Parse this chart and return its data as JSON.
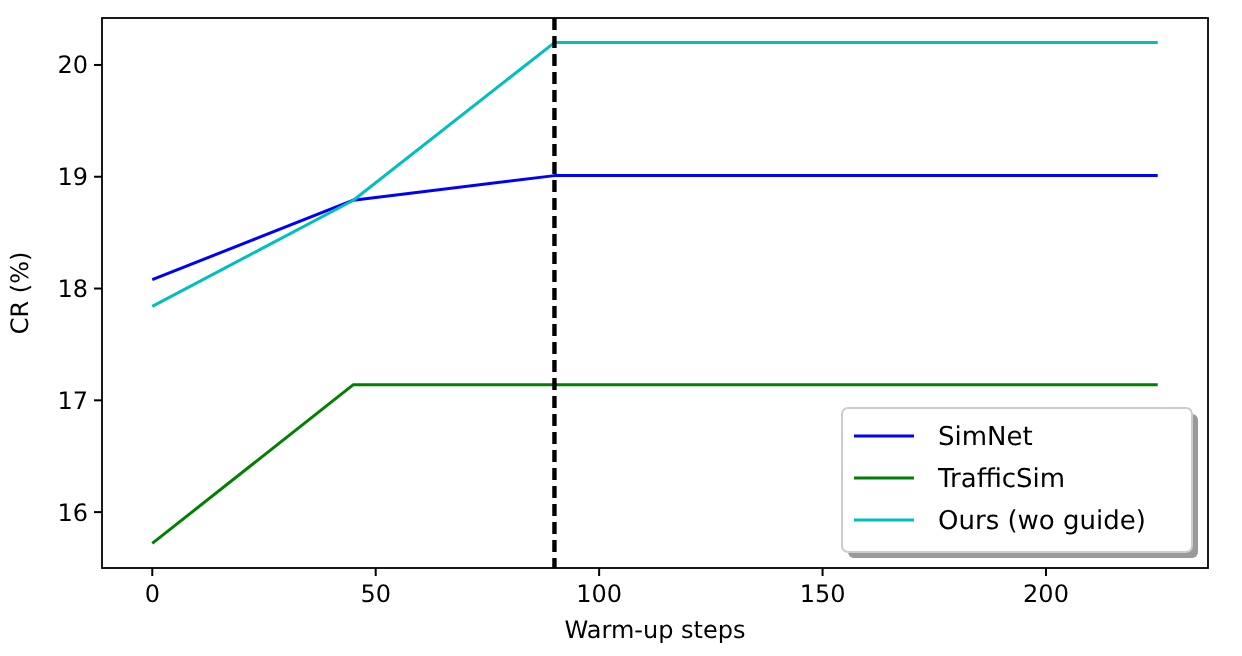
{
  "chart_data": {
    "type": "line",
    "xlabel": "Warm-up steps",
    "ylabel": "CR (%)",
    "x": [
      0,
      45,
      90,
      225
    ],
    "series": [
      {
        "name": "SimNet",
        "color": "#0000ff",
        "values": [
          18.08,
          18.79,
          19.01,
          19.01
        ]
      },
      {
        "name": "TrafficSim",
        "color": "#008000",
        "values": [
          15.72,
          17.14,
          17.14,
          17.14
        ]
      },
      {
        "name": "Ours (wo guide)",
        "color": "#00bfbf",
        "values": [
          17.84,
          18.79,
          20.2,
          20.2
        ]
      }
    ],
    "xlim": [
      -11.25,
      236.25
    ],
    "xticks": [
      0,
      50,
      100,
      150,
      200
    ],
    "ylim": [
      15.5,
      20.42
    ],
    "yticks": [
      16,
      17,
      18,
      19,
      20
    ],
    "ref_lines": [
      {
        "axis": "x",
        "value": 90,
        "color": "#000000",
        "line_style": "dashed"
      }
    ],
    "grid": false,
    "legend": "bottom right",
    "marker": "none",
    "line_style": "solid"
  }
}
